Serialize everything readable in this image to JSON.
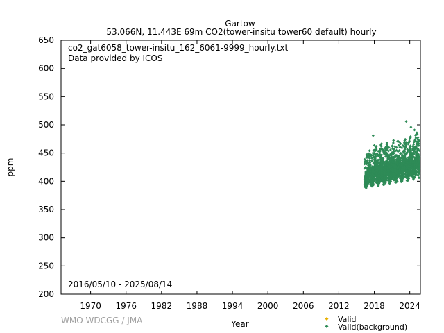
{
  "chart_data": {
    "type": "scatter",
    "title": "Gartow",
    "subtitle": "53.066N, 11.443E 69m    CO2(tower-insitu tower60 default) hourly",
    "file_label": "co2_gat6058_tower-insitu_162_6061-9999_hourly.txt",
    "provider_label": "Data provided by ICOS",
    "date_range_label": "2016/05/10 - 2025/08/14",
    "xlabel": "Year",
    "ylabel": "ppm",
    "xlim": [
      1965.0,
      2025.8
    ],
    "ylim": [
      200,
      650
    ],
    "x_ticks": [
      1970,
      1976,
      1982,
      1988,
      1994,
      2000,
      2006,
      2012,
      2018,
      2024
    ],
    "y_ticks": [
      200,
      250,
      300,
      350,
      400,
      450,
      500,
      550,
      600,
      650
    ],
    "grid": false,
    "legend_position": "bottom-right",
    "series": [
      {
        "name": "Valid",
        "color": "#e8b000",
        "marker": "diamond",
        "x": [],
        "y": []
      },
      {
        "name": "Valid(background)",
        "color": "#2e8b57",
        "marker": "diamond",
        "x": [
          2016.36,
          2016.5,
          2016.7,
          2016.9,
          2017.1,
          2017.3,
          2017.5,
          2017.7,
          2017.9,
          2018.1,
          2018.3,
          2018.5,
          2018.7,
          2018.9,
          2019.1,
          2019.3,
          2019.5,
          2019.7,
          2019.9,
          2020.1,
          2020.3,
          2020.5,
          2020.7,
          2020.9,
          2021.1,
          2021.3,
          2021.5,
          2021.7,
          2021.9,
          2022.1,
          2022.3,
          2022.5,
          2022.7,
          2022.9,
          2023.1,
          2023.3,
          2023.5,
          2023.7,
          2023.9,
          2024.1,
          2024.3,
          2024.5,
          2024.7,
          2024.9,
          2025.1,
          2025.3,
          2025.5,
          2025.62
        ],
        "y_min": [
          390,
          388,
          392,
          396,
          400,
          395,
          390,
          393,
          398,
          402,
          398,
          392,
          394,
          400,
          404,
          399,
          394,
          397,
          402,
          406,
          401,
          396,
          399,
          404,
          408,
          402,
          398,
          400,
          406,
          410,
          405,
          399,
          402,
          408,
          412,
          407,
          401,
          404,
          410,
          414,
          409,
          403,
          406,
          412,
          415,
          410,
          406,
          408
        ],
        "y_max": [
          440,
          445,
          448,
          452,
          455,
          450,
          448,
          455,
          470,
          478,
          462,
          455,
          458,
          466,
          470,
          462,
          456,
          460,
          468,
          472,
          464,
          458,
          462,
          470,
          475,
          466,
          460,
          464,
          472,
          476,
          468,
          462,
          466,
          474,
          480,
          470,
          464,
          470,
          480,
          490,
          478,
          468,
          474,
          484,
          488,
          478,
          472,
          476
        ]
      }
    ],
    "outliers": [
      {
        "x": 2023.4,
        "y": 506
      },
      {
        "x": 2024.2,
        "y": 496
      },
      {
        "x": 2024.8,
        "y": 491
      },
      {
        "x": 2017.8,
        "y": 481
      },
      {
        "x": 2025.2,
        "y": 486
      }
    ]
  },
  "footer": {
    "credit": "WMO WDCGG / JMA"
  }
}
